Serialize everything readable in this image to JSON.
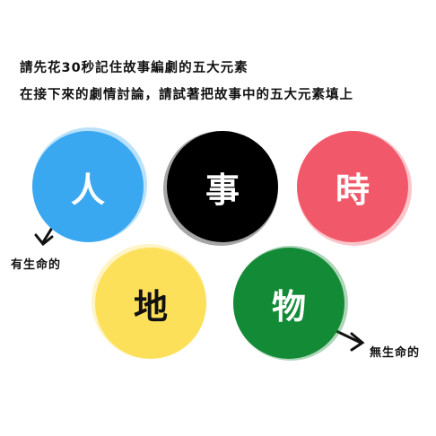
{
  "instructions": {
    "line1": "請先花30秒記住故事編劇的五大元素",
    "line2": "在接下來的劇情討論，請試著把故事中的五大元素填上"
  },
  "elements": [
    {
      "char": "人",
      "color": "#3aa8f2",
      "text_color": "#ffffff"
    },
    {
      "char": "事",
      "color": "#000000",
      "text_color": "#ffffff"
    },
    {
      "char": "時",
      "color": "#f25a6a",
      "text_color": "#ffffff"
    },
    {
      "char": "地",
      "color": "#fde05a",
      "text_color": "#111111"
    },
    {
      "char": "物",
      "color": "#138a37",
      "text_color": "#ffffff"
    }
  ],
  "annotations": {
    "living": "有生命的",
    "nonliving": "無生命的"
  }
}
